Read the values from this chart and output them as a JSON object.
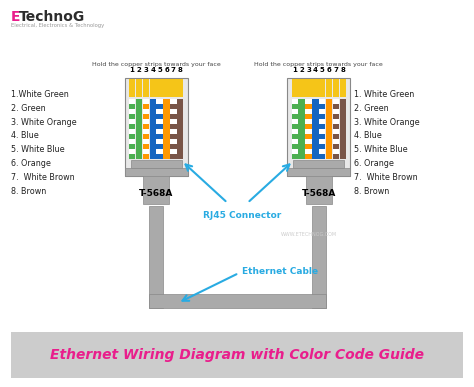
{
  "title": "Ethernet Wiring Diagram with Color Code Guide",
  "title_color": "#e91e8c",
  "title_bg": "#cccccc",
  "bg_color": "#ffffff",
  "logo_color_E": "#e91e8c",
  "logo_color_rest": "#2c2c2c",
  "logo_sub": "Electrical, Electronics & Technology",
  "left_label": "Hold the copper strips towards your face",
  "right_label": "Hold the copper strips towards your face",
  "left_wire_labels": [
    "1.White Green",
    "2. Green",
    "3. White Orange",
    "4. Blue",
    "5. White Blue",
    "6. Orange",
    "7.  White Brown",
    "8. Brown"
  ],
  "right_wire_labels": [
    "1. White Green",
    "2. Green",
    "3. White Orange",
    "4. Blue",
    "5. White Blue",
    "6. Orange",
    "7.  White Brown",
    "8. Brown"
  ],
  "connector_label": "RJ45 Connector",
  "connector_color": "#29abe2",
  "cable_label": "Ethernet Cable",
  "standard_label": "T-568A",
  "connector_body_color": "#aaaaaa",
  "connector_body_edge": "#888888",
  "connector_pins_color": "#f5c518",
  "connector_inner_bg": "#e8e8e8",
  "cable_color": "#aaaaaa",
  "watermark": "WWW.ETECHNOG.COM",
  "wire_display": [
    {
      "base": "#4caf50",
      "stripe": "#ffffff"
    },
    {
      "base": "#ff9800",
      "stripe": "#ffffff"
    },
    {
      "base": "#1565c0",
      "stripe": null
    },
    {
      "base": "#1565c0",
      "stripe": "#ffffff"
    },
    {
      "base": "#ff9800",
      "stripe": null
    },
    {
      "base": "#795548",
      "stripe": "#ffffff"
    },
    {
      "base": "#795548",
      "stripe": null
    }
  ],
  "wire_display_full": [
    {
      "base": "#4caf50",
      "stripe": "#ffffff"
    },
    {
      "base": "#4caf50",
      "stripe": null
    },
    {
      "base": "#ff9800",
      "stripe": "#ffffff"
    },
    {
      "base": "#1565c0",
      "stripe": null
    },
    {
      "base": "#1565c0",
      "stripe": "#ffffff"
    },
    {
      "base": "#ff9800",
      "stripe": null
    },
    {
      "base": "#795548",
      "stripe": "#ffffff"
    },
    {
      "base": "#795548",
      "stripe": null
    }
  ]
}
